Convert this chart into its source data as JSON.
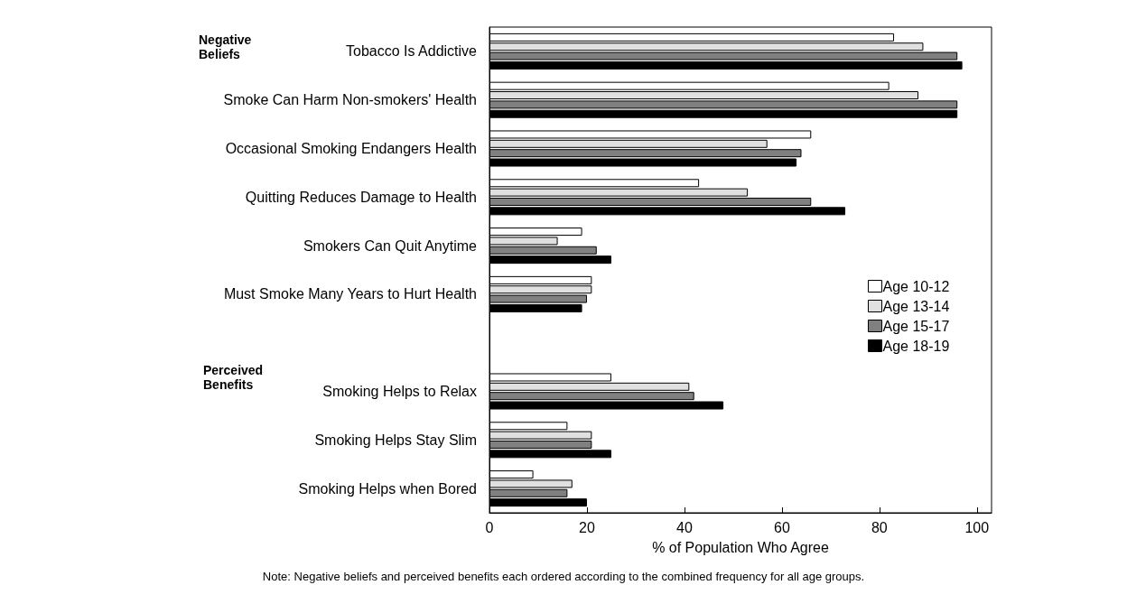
{
  "chart_data": {
    "type": "bar",
    "orientation": "horizontal",
    "xlabel": "% of Population Who Agree",
    "categories": [
      "Tobacco Is Addictive",
      "Smoke Can Harm Non-smokers' Health",
      "Occasional Smoking Endangers Health",
      "Quitting Reduces Damage to Health",
      "Smokers Can Quit Anytime",
      "Must Smoke Many Years to Hurt Health",
      null,
      "Smoking Helps to Relax",
      "Smoking Helps Stay Slim",
      "Smoking Helps when Bored"
    ],
    "series": [
      {
        "name": "Age 10-12",
        "color": "#ffffff",
        "values": [
          83,
          82,
          66,
          43,
          19,
          21,
          null,
          25,
          16,
          9
        ]
      },
      {
        "name": "Age 13-14",
        "color": "#e0e0e0",
        "values": [
          89,
          88,
          57,
          53,
          14,
          21,
          null,
          41,
          21,
          17
        ]
      },
      {
        "name": "Age 15-17",
        "color": "#808080",
        "values": [
          96,
          96,
          64,
          66,
          22,
          20,
          null,
          42,
          21,
          16
        ]
      },
      {
        "name": "Age 18-19",
        "color": "#000000",
        "values": [
          97,
          96,
          63,
          73,
          25,
          19,
          null,
          48,
          25,
          20
        ]
      }
    ],
    "xlim": [
      0,
      103
    ],
    "xticks": [
      0,
      20,
      40,
      60,
      80,
      100
    ],
    "grid": false,
    "legend": "right",
    "annotations": [
      "Negative\nBeliefs",
      "Perceived\nBenefits",
      "Note: Negative beliefs and perceived benefits each ordered according to the combined frequency for all age groups."
    ]
  }
}
